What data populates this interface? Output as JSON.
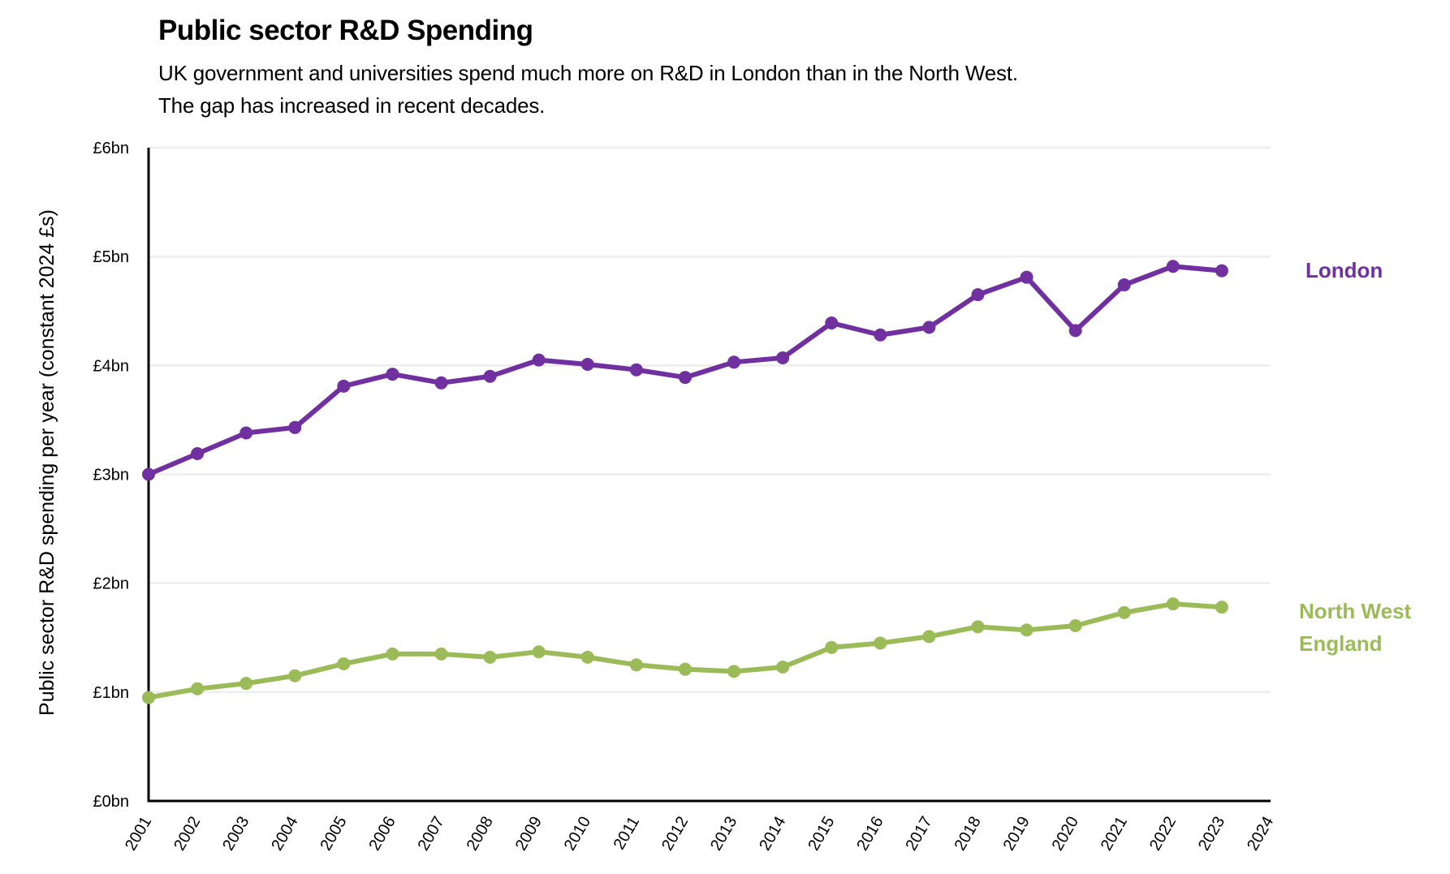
{
  "chart_data": {
    "type": "line",
    "title": "Public sector R&D Spending",
    "subtitle_lines": [
      "UK government and universities spend much more on R&D in London than in the North West.",
      "The gap has increased in recent decades."
    ],
    "xlabel": "",
    "ylabel": "Public sector R&D spending per year (constant 2024 £s)",
    "x": [
      2001,
      2002,
      2003,
      2004,
      2005,
      2006,
      2007,
      2008,
      2009,
      2010,
      2011,
      2012,
      2013,
      2014,
      2015,
      2016,
      2017,
      2018,
      2019,
      2020,
      2021,
      2022,
      2023
    ],
    "xlim": [
      2001,
      2024
    ],
    "x_tick_labels": [
      "2001",
      "2002",
      "2003",
      "2004",
      "2005",
      "2006",
      "2007",
      "2008",
      "2009",
      "2010",
      "2011",
      "2012",
      "2013",
      "2014",
      "2015",
      "2016",
      "2017",
      "2018",
      "2019",
      "2020",
      "2021",
      "2022",
      "2023",
      "2024"
    ],
    "ylim": [
      0,
      6
    ],
    "y_ticks": [
      0,
      1,
      2,
      3,
      4,
      5,
      6
    ],
    "y_tick_labels": [
      "£0bn",
      "£1bn",
      "£2bn",
      "£3bn",
      "£4bn",
      "£5bn",
      "£6bn"
    ],
    "grid": "horizontal",
    "legend": "direct-labels-right",
    "series": [
      {
        "name": "London",
        "label_lines": [
          "London"
        ],
        "color": "#7030A0",
        "values": [
          3.0,
          3.19,
          3.38,
          3.43,
          3.81,
          3.92,
          3.84,
          3.9,
          4.05,
          4.01,
          3.96,
          3.89,
          4.03,
          4.07,
          4.39,
          4.28,
          4.35,
          4.65,
          4.81,
          4.32,
          4.74,
          4.91,
          4.87
        ]
      },
      {
        "name": "North West England",
        "label_lines": [
          "North West",
          "England"
        ],
        "color": "#9BBB59",
        "values": [
          0.95,
          1.03,
          1.08,
          1.15,
          1.26,
          1.35,
          1.35,
          1.32,
          1.37,
          1.32,
          1.25,
          1.21,
          1.19,
          1.23,
          1.41,
          1.45,
          1.51,
          1.6,
          1.57,
          1.61,
          1.73,
          1.81,
          1.78
        ]
      }
    ]
  }
}
